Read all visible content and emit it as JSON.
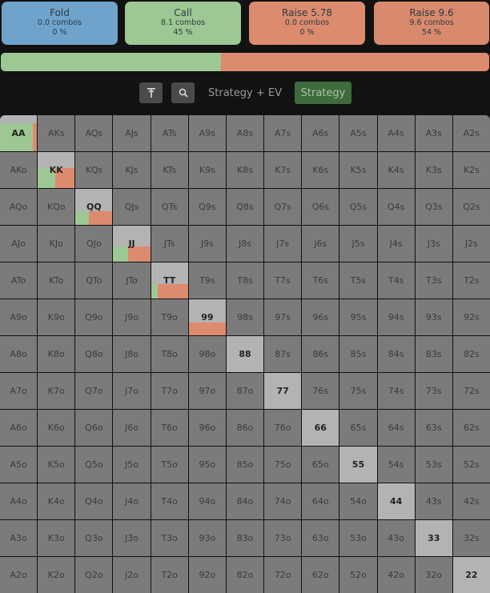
{
  "colors": {
    "fold": "#6fa3cb",
    "call": "#9dc893",
    "raise": "#dd8b6f",
    "raise2": "#d98a6d",
    "background": "#121212",
    "cell": "#7b7b7b",
    "pair_cell": "#b3b3b3",
    "active_button": "#3e6b3b"
  },
  "actions": [
    {
      "name": "Fold",
      "combos": "0.0 combos",
      "percent": "0 %"
    },
    {
      "name": "Call",
      "combos": "8.1 combos",
      "percent": "45 %"
    },
    {
      "name": "Raise 5.78",
      "combos": "0.0 combos",
      "percent": "0 %"
    },
    {
      "name": "Raise 9.6",
      "combos": "9.6 combos",
      "percent": "54 %"
    }
  ],
  "frequency_bar": {
    "call_percent": 45,
    "raise_percent": 55
  },
  "toolbar": {
    "top_icon": "text-top-icon",
    "search_icon": "zoom-icon",
    "strategy_ev_label": "Strategy + EV",
    "strategy_label": "Strategy"
  },
  "grid": {
    "rows": [
      [
        "AA",
        "AKs",
        "AQs",
        "AJs",
        "ATs",
        "A9s",
        "A8s",
        "A7s",
        "A6s",
        "A5s",
        "A4s",
        "A3s",
        "A2s"
      ],
      [
        "AKo",
        "KK",
        "KQs",
        "KJs",
        "KTs",
        "K9s",
        "K8s",
        "K7s",
        "K6s",
        "K5s",
        "K4s",
        "K3s",
        "K2s"
      ],
      [
        "AQo",
        "KQo",
        "QQ",
        "QJs",
        "QTs",
        "Q9s",
        "Q8s",
        "Q7s",
        "Q6s",
        "Q5s",
        "Q4s",
        "Q3s",
        "Q2s"
      ],
      [
        "AJo",
        "KJo",
        "QJo",
        "JJ",
        "JTs",
        "J9s",
        "J8s",
        "J7s",
        "J6s",
        "J5s",
        "J4s",
        "J3s",
        "J2s"
      ],
      [
        "ATo",
        "KTo",
        "QTo",
        "JTo",
        "TT",
        "T9s",
        "T8s",
        "T7s",
        "T6s",
        "T5s",
        "T4s",
        "T3s",
        "T2s"
      ],
      [
        "A9o",
        "K9o",
        "Q9o",
        "J9o",
        "T9o",
        "99",
        "98s",
        "97s",
        "96s",
        "95s",
        "94s",
        "93s",
        "92s"
      ],
      [
        "A8o",
        "K8o",
        "Q8o",
        "J8o",
        "T8o",
        "98o",
        "88",
        "87s",
        "86s",
        "85s",
        "84s",
        "83s",
        "82s"
      ],
      [
        "A7o",
        "K7o",
        "Q7o",
        "J7o",
        "T7o",
        "97o",
        "87o",
        "77",
        "76s",
        "75s",
        "74s",
        "73s",
        "72s"
      ],
      [
        "A6o",
        "K6o",
        "Q6o",
        "J6o",
        "T6o",
        "96o",
        "86o",
        "76o",
        "66",
        "65s",
        "64s",
        "63s",
        "62s"
      ],
      [
        "A5o",
        "K5o",
        "Q5o",
        "J5o",
        "T5o",
        "95o",
        "85o",
        "75o",
        "65o",
        "55",
        "54s",
        "53s",
        "52s"
      ],
      [
        "A4o",
        "K4o",
        "Q4o",
        "J4o",
        "T4o",
        "94o",
        "84o",
        "74o",
        "64o",
        "54o",
        "44",
        "43s",
        "42s"
      ],
      [
        "A3o",
        "K3o",
        "Q3o",
        "J3o",
        "T3o",
        "93o",
        "83o",
        "73o",
        "63o",
        "53o",
        "43o",
        "33",
        "32s"
      ],
      [
        "A2o",
        "K2o",
        "Q2o",
        "J2o",
        "T2o",
        "92o",
        "82o",
        "72o",
        "62o",
        "52o",
        "42o",
        "32o",
        "22"
      ]
    ],
    "strategy": {
      "AA": {
        "weight": 0.77,
        "call": 0.88,
        "raise": 0.12
      },
      "KK": {
        "weight": 0.56,
        "call": 0.47,
        "raise": 0.53
      },
      "QQ": {
        "weight": 0.38,
        "call": 0.37,
        "raise": 0.63
      },
      "JJ": {
        "weight": 0.42,
        "call": 0.4,
        "raise": 0.6
      },
      "TT": {
        "weight": 0.41,
        "call": 0.19,
        "raise": 0.81
      },
      "99": {
        "weight": 0.36,
        "call": 0.0,
        "raise": 1.0
      }
    }
  }
}
